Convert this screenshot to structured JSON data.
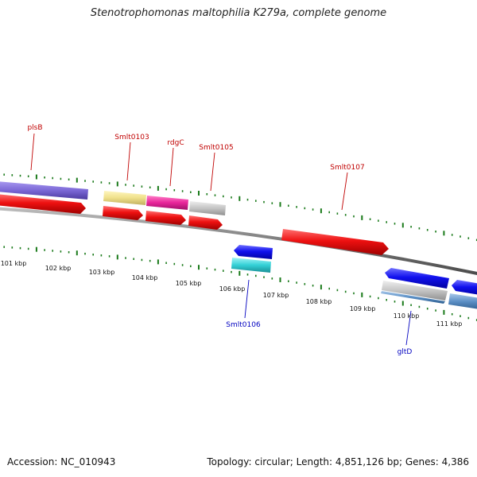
{
  "title": "Stenotrophomonas maltophilia K279a, complete genome",
  "footer": {
    "accession": "Accession: NC_010943",
    "topology": "Topology: circular; Length: 4,851,126 bp; Genes: 4,386"
  },
  "scale_labels": [
    "101 kbp",
    "102 kbp",
    "103 kbp",
    "104 kbp",
    "105 kbp",
    "106 kbp",
    "107 kbp",
    "108 kbp",
    "109 kbp",
    "110 kbp",
    "111 kbp"
  ],
  "gene_labels": [
    {
      "text": "plsB",
      "strand": "forward"
    },
    {
      "text": "Smlt0103",
      "strand": "forward"
    },
    {
      "text": "rdgC",
      "strand": "forward"
    },
    {
      "text": "Smlt0105",
      "strand": "forward"
    },
    {
      "text": "Smlt0107",
      "strand": "forward"
    },
    {
      "text": "Smlt0106",
      "strand": "reverse"
    },
    {
      "text": "gltD",
      "strand": "reverse"
    }
  ],
  "colors": {
    "forward_label": "#c00000",
    "reverse_label": "#0000c0",
    "tick": "#1a7a1a",
    "backbone": "#7a7a7a",
    "cds_forward": "#ee1111",
    "cds_reverse": "#1111ee",
    "plsB_feature": "#7b68d6",
    "Smlt0103_feature": "#efe08a",
    "rdgC_feature": "#e8259a",
    "Smlt0105_feature": "#c4c4c4",
    "Smlt0106_feature": "#33d0d6",
    "gltD_feature": "#5a8ec4"
  }
}
